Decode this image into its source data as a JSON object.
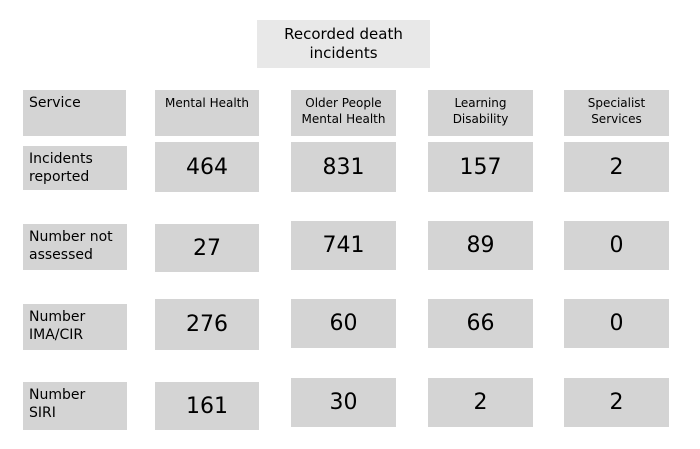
{
  "title": "Recorded death\nincidents",
  "header": {
    "service_label": "Service",
    "columns": [
      "Mental Health",
      "Older People\nMental Health",
      "Learning\nDisability",
      "Specialist\nServices"
    ]
  },
  "rows": [
    {
      "label": "Incidents\nreported",
      "values": [
        "464",
        "831",
        "157",
        "2"
      ]
    },
    {
      "label": "Number not\nassessed",
      "values": [
        "27",
        "741",
        "89",
        "0"
      ]
    },
    {
      "label": "Number\nIMA/CIR",
      "values": [
        "276",
        "60",
        "66",
        "0"
      ]
    },
    {
      "label": "Number\nSIRI",
      "values": [
        "161",
        "30",
        "2",
        "2"
      ]
    }
  ]
}
